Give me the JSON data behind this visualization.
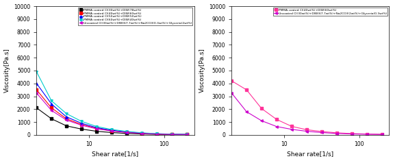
{
  "left_plot": {
    "xlabel": "Shear rate[1/s]",
    "ylabel": "Viscosity[Pa.s]",
    "ylim": [
      0,
      10000
    ],
    "xlim": [
      2,
      250
    ],
    "series": [
      {
        "label": "PMMA coated CI(30wt%)+DIW(78wt%)",
        "color": "#000000",
        "marker": "s",
        "x": [
          2.0,
          3.16,
          5.0,
          7.94,
          12.6,
          20.0,
          31.6,
          50.0,
          79.4,
          126.0,
          200.0
        ],
        "y": [
          2100,
          1250,
          700,
          450,
          280,
          180,
          110,
          70,
          40,
          30,
          20
        ]
      },
      {
        "label": "PMMA coated CI(40wt%)+DIW(60wt%)",
        "color": "#ff0000",
        "marker": "s",
        "x": [
          2.0,
          3.16,
          5.0,
          7.94,
          12.6,
          20.0,
          31.6,
          50.0,
          79.4,
          126.0,
          200.0
        ],
        "y": [
          3500,
          2100,
          1250,
          800,
          500,
          320,
          200,
          120,
          70,
          45,
          30
        ]
      },
      {
        "label": "PMMA coated CI(50wt%)+DIW(50wt%)",
        "color": "#0000ff",
        "marker": "^",
        "x": [
          2.0,
          3.16,
          5.0,
          7.94,
          12.6,
          20.0,
          31.6,
          50.0,
          79.4,
          126.0,
          200.0
        ],
        "y": [
          4000,
          2400,
          1400,
          900,
          560,
          360,
          230,
          140,
          80,
          50,
          35
        ]
      },
      {
        "label": "PMMA coated CI(60wt%)+DIW(40wt%)",
        "color": "#00cccc",
        "marker": "v",
        "x": [
          2.0,
          3.16,
          5.0,
          7.94,
          12.6,
          20.0,
          31.6,
          50.0,
          79.4,
          126.0,
          200.0
        ],
        "y": [
          4900,
          2650,
          1650,
          1050,
          650,
          420,
          270,
          160,
          95,
          60,
          40
        ]
      },
      {
        "label": "Uncoated CI(30wt%)+DIW(67.7wt%)+Na2CO3(0.3wt%)+Glyceria(2wt%)",
        "color": "#cc00cc",
        "marker": "<",
        "x": [
          2.0,
          3.16,
          5.0,
          7.94,
          12.6,
          20.0,
          31.6,
          50.0,
          79.4,
          126.0,
          200.0
        ],
        "y": [
          3250,
          1900,
          1150,
          750,
          470,
          300,
          185,
          115,
          65,
          42,
          28
        ]
      }
    ]
  },
  "right_plot": {
    "xlabel": "Shear rate[1/s]",
    "ylabel": "Viscosity[Pa.s]",
    "ylim": [
      0,
      10000
    ],
    "xlim": [
      2,
      250
    ],
    "series": [
      {
        "label": "PMMA coated CI(40wt%)+DIW(60wt%)",
        "color": "#ff3399",
        "marker": "s",
        "x": [
          2.0,
          3.16,
          5.0,
          7.94,
          12.6,
          20.0,
          31.6,
          50.0,
          79.4,
          126.0,
          200.0
        ],
        "y": [
          4200,
          3500,
          2050,
          1200,
          660,
          400,
          260,
          160,
          100,
          65,
          45
        ]
      },
      {
        "label": "Uncoated CI(30wt%)+DIW(67.7wt%)+Na2CO3(2wt%)+Glyceria(0.3wt%)",
        "color": "#cc00cc",
        "marker": "<",
        "x": [
          2.0,
          3.16,
          5.0,
          7.94,
          12.6,
          20.0,
          31.6,
          50.0,
          79.4,
          126.0,
          200.0
        ],
        "y": [
          3250,
          1800,
          1100,
          650,
          430,
          280,
          180,
          110,
          70,
          50,
          35
        ]
      }
    ]
  }
}
